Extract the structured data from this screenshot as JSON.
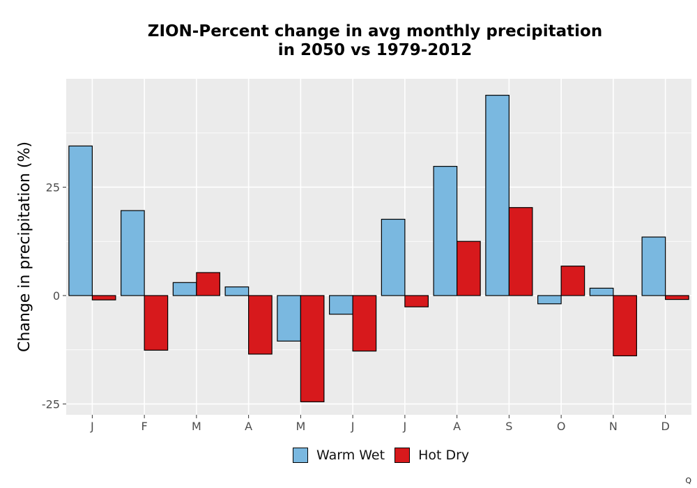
{
  "chart_data": {
    "type": "bar",
    "title_line1": "ZION-Percent change in avg monthly precipitation",
    "title_line2": "in 2050 vs 1979-2012",
    "xlabel": "",
    "ylabel": "Change in precipitation (%)",
    "categories": [
      "J",
      "F",
      "M",
      "A",
      "M",
      "J",
      "J",
      "A",
      "S",
      "O",
      "N",
      "D"
    ],
    "series": [
      {
        "name": "Warm Wet",
        "color": "#7ab8e0",
        "values": [
          34.5,
          19.6,
          3.0,
          2.0,
          -10.5,
          -4.3,
          17.6,
          29.8,
          46.2,
          -1.9,
          1.7,
          13.5
        ]
      },
      {
        "name": "Hot Dry",
        "color": "#d7191c",
        "values": [
          -1.0,
          -12.6,
          5.3,
          -13.5,
          -24.5,
          -12.8,
          -2.6,
          12.5,
          20.3,
          6.8,
          -13.9,
          -0.9
        ]
      }
    ],
    "ylim": [
      -27.5,
      50
    ],
    "yticks": [
      -25,
      0,
      25
    ],
    "ytick_labels": [
      "-25",
      "0",
      "25"
    ],
    "grid": true,
    "legend_position": "bottom"
  },
  "footer_mark": "Q"
}
